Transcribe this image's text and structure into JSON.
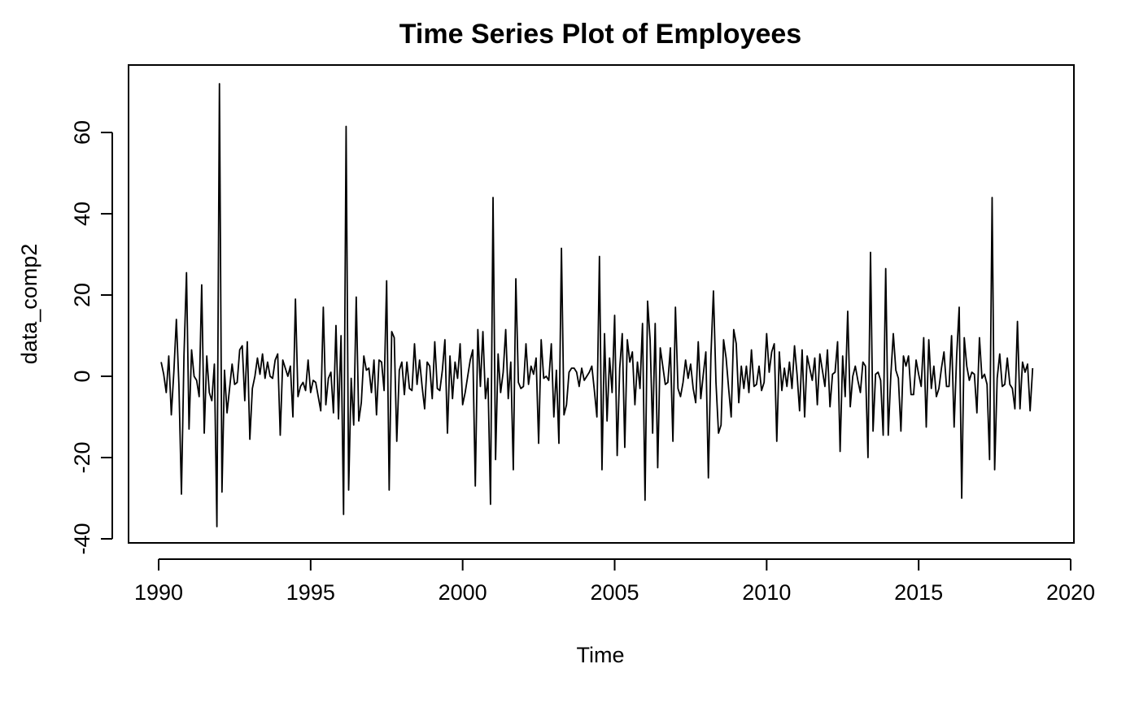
{
  "chart_data": {
    "type": "line",
    "title": "Time Series Plot of Employees",
    "xlabel": "Time",
    "ylabel": "data_comp2",
    "xlim": [
      1989.0,
      2020.0
    ],
    "ylim": [
      -40,
      72
    ],
    "xticks": [
      1990,
      1995,
      2000,
      2005,
      2010,
      2015,
      2020
    ],
    "xtick_labels": [
      "1990",
      "1995",
      "2000",
      "2005",
      "2010",
      "2015",
      "2020"
    ],
    "yticks": [
      -40,
      -20,
      0,
      20,
      40,
      60
    ],
    "ytick_labels": [
      "-40",
      "-20",
      "0",
      "20",
      "40",
      "60"
    ],
    "grid": false,
    "line_color": "#000000",
    "series": [
      {
        "x_start": 1990.083,
        "x_step": 0.0833333,
        "values": [
          3.5,
          0.5,
          -4,
          5,
          -9.5,
          1,
          14,
          -2,
          -29,
          5,
          25.5,
          -13,
          6.5,
          0,
          -1,
          -5,
          22.5,
          -14,
          5,
          -4,
          -6,
          3,
          -37,
          72,
          -28.5,
          1.5,
          -9,
          -3,
          3,
          -2,
          -1.5,
          6.5,
          7.5,
          -6,
          8.5,
          -15.5,
          -3,
          0,
          4.5,
          0.5,
          5.5,
          -0.5,
          3.5,
          0,
          -0.5,
          4,
          5.5,
          -14.5,
          4,
          2,
          0,
          2.5,
          -10,
          19,
          -5,
          -2.5,
          -1.5,
          -3.5,
          4,
          -4,
          -1,
          -1.5,
          -5,
          -8.5,
          17,
          -7,
          -0.5,
          1,
          -9,
          12.5,
          -10.5,
          10,
          -34,
          61.5,
          -28,
          -0.5,
          -12,
          19.5,
          -11,
          -6.5,
          5,
          1.5,
          2,
          -4,
          4,
          -9.5,
          4,
          3.5,
          -3.5,
          23.5,
          -28,
          11,
          9.5,
          -16,
          1.5,
          3.5,
          -4.5,
          3.5,
          -3,
          -3.5,
          8,
          -2,
          4,
          -2.5,
          -8,
          3.5,
          2.5,
          -5.5,
          8.5,
          -3,
          -3.5,
          1.5,
          9,
          -14,
          5,
          -5.5,
          3.5,
          -0.5,
          8,
          -7,
          -4,
          0,
          4,
          6.5,
          -27,
          11.5,
          -2.5,
          11,
          -5.5,
          -0.5,
          -31.5,
          44,
          -20.5,
          5.5,
          -4,
          1,
          11.5,
          -5.5,
          3.5,
          -23,
          24,
          -1.5,
          -3,
          -2.5,
          8,
          -2,
          2.5,
          0.5,
          4.5,
          -16.5,
          9,
          -0.5,
          0,
          -1,
          8,
          -10,
          1.5,
          -16.5,
          31.5,
          -9.5,
          -7,
          1,
          2,
          2,
          1,
          -2.5,
          2,
          -1,
          0,
          1,
          2.5,
          -3.5,
          -10,
          29.5,
          -23,
          10.5,
          -11,
          4.5,
          -4,
          15,
          -19.5,
          2,
          10.5,
          -17.5,
          9,
          3.5,
          6,
          -7,
          3.5,
          -3,
          13,
          -30.5,
          18.5,
          9,
          -14,
          13,
          -22.5,
          7,
          2.5,
          -2,
          -1.5,
          7,
          -16,
          17,
          -3,
          -5,
          -1.5,
          4,
          -0.5,
          3,
          -3,
          -6.5,
          8.5,
          -5.5,
          0.5,
          6,
          -25,
          5,
          21,
          -1.5,
          -14,
          -12,
          9,
          4.5,
          -3,
          -10,
          11.5,
          8,
          -6.5,
          2.5,
          -3,
          2.5,
          -4,
          6.5,
          -2.5,
          -2,
          2.5,
          -3.5,
          -1.5,
          10.5,
          1,
          6,
          8,
          -16,
          6,
          -3.5,
          2,
          -2.5,
          3.5,
          -3,
          7.5,
          0.5,
          -8.5,
          6.5,
          -10,
          5,
          2,
          -1,
          4.5,
          -7,
          5.5,
          1.5,
          -2.5,
          6.5,
          -7.5,
          0.5,
          1,
          8.5,
          -18.5,
          5,
          -5,
          16,
          -7.5,
          0,
          2.5,
          -1,
          -4,
          3.5,
          2.5,
          -20,
          30.5,
          -13.5,
          0.5,
          1,
          -1,
          -14.5,
          26.5,
          -14.5,
          0,
          10.5,
          1.5,
          -0.5,
          -13.5,
          5,
          2.5,
          5,
          -4.5,
          -4.5,
          4,
          0.5,
          -2.5,
          9.5,
          -12.5,
          9,
          -3,
          2.5,
          -5,
          -3,
          2,
          6,
          -2.5,
          -2.5,
          10,
          -12.5,
          5,
          17,
          -30,
          9.5,
          2.5,
          -1,
          1,
          0.5,
          -9,
          9.5,
          -0.5,
          0.5,
          -2,
          -20.5,
          44,
          -23,
          -0.5,
          5.5,
          -2.5,
          -2,
          4.5,
          -2,
          -3,
          -8,
          13.5,
          -8,
          3.5,
          1,
          3,
          -8.5,
          2
        ]
      }
    ]
  }
}
